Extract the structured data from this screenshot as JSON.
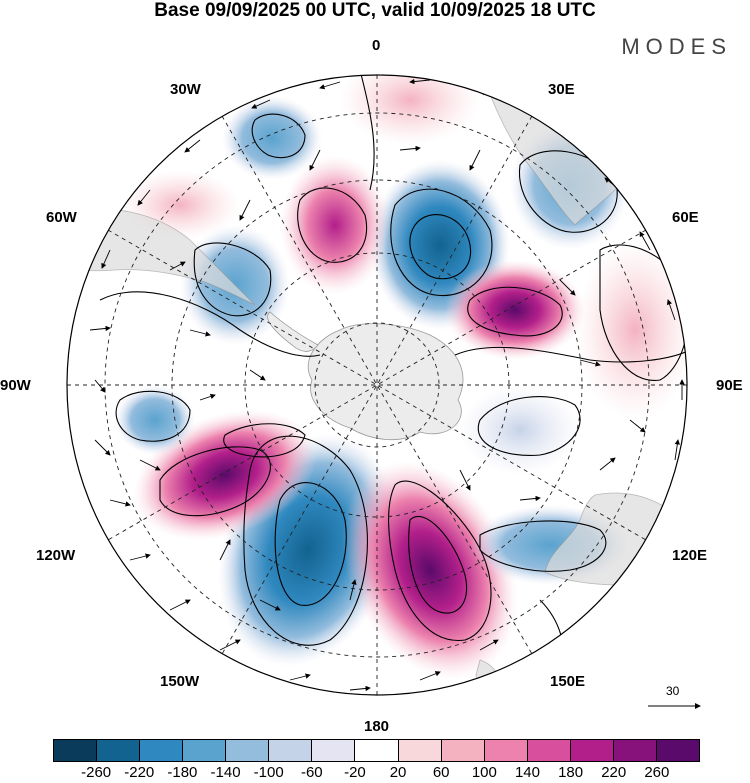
{
  "title": "Base 09/09/2025 00 UTC, valid 10/09/2025 18 UTC",
  "brand": "MODES",
  "lon_labels": {
    "top": "0",
    "top_right": "30E",
    "right_upper": "60E",
    "right": "90E",
    "right_lower": "120E",
    "bottom_right": "150E",
    "bottom": "180",
    "bottom_left": "150W",
    "left_lower": "120W",
    "left": "90W",
    "left_upper": "60W",
    "top_left": "30W"
  },
  "reference_vector": {
    "value": "30"
  },
  "colorbar": {
    "colors": [
      "#0b3b5a",
      "#12638f",
      "#2f88bf",
      "#5aa3cf",
      "#93bcdd",
      "#c5d3e8",
      "#e4e4f2",
      "#ffffff",
      "#f9d8dc",
      "#f4b2c0",
      "#ec82ad",
      "#d84f9d",
      "#b21f8a",
      "#87127c",
      "#5a0a6a"
    ],
    "labels": [
      "-260",
      "-220",
      "-180",
      "-140",
      "-100",
      "-60",
      "-20",
      "20",
      "60",
      "100",
      "140",
      "180",
      "220",
      "260"
    ]
  },
  "map_features": {
    "anomaly_blobs": [
      {
        "name": "blob-neg-south-pacific",
        "value": -240
      },
      {
        "name": "blob-pos-south-indian",
        "value": 260
      },
      {
        "name": "blob-pos-southeast-pacific",
        "value": 220
      },
      {
        "name": "blob-neg-south-atlantic",
        "value": -180
      },
      {
        "name": "blob-pos-southwest-atlantic",
        "value": 180
      },
      {
        "name": "blob-pos-east-indian",
        "value": 220
      },
      {
        "name": "blob-neg-australia",
        "value": -140
      },
      {
        "name": "blob-neg-patagonia",
        "value": -120
      },
      {
        "name": "blob-neg-northwest-atlantic",
        "value": -120
      },
      {
        "name": "blob-neg-east-africa",
        "value": -100
      },
      {
        "name": "blob-pos-west-australia",
        "value": 60
      }
    ]
  }
}
